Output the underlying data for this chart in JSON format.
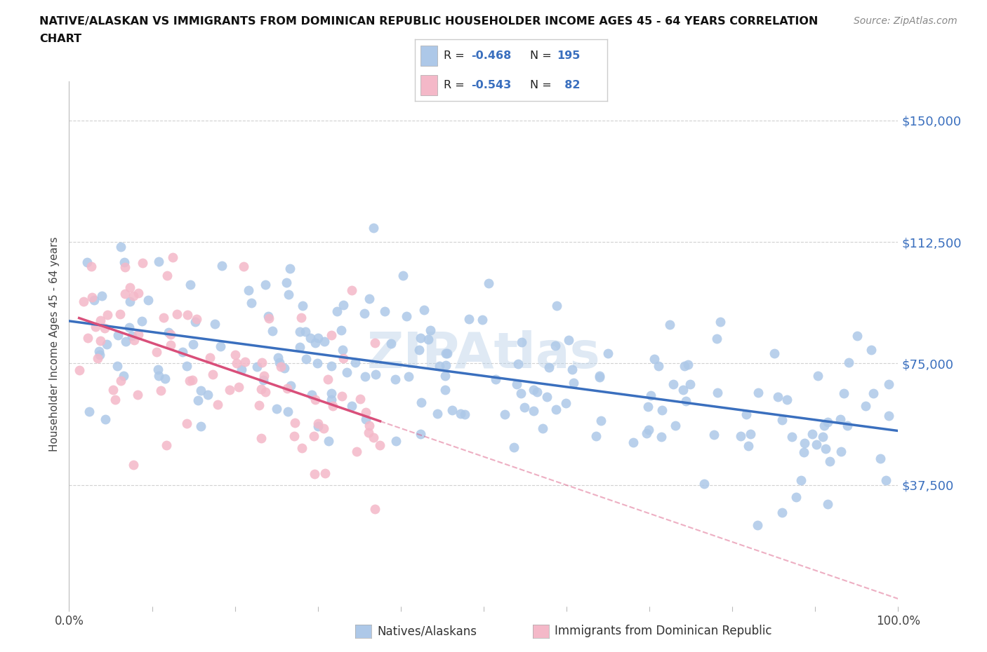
{
  "title_line1": "NATIVE/ALASKAN VS IMMIGRANTS FROM DOMINICAN REPUBLIC HOUSEHOLDER INCOME AGES 45 - 64 YEARS CORRELATION",
  "title_line2": "CHART",
  "source_text": "Source: ZipAtlas.com",
  "ylabel": "Householder Income Ages 45 - 64 years",
  "xlim": [
    0.0,
    1.0
  ],
  "ylim": [
    0,
    162000
  ],
  "yticks": [
    37500,
    75000,
    112500,
    150000
  ],
  "ytick_labels": [
    "$37,500",
    "$75,000",
    "$112,500",
    "$150,000"
  ],
  "native_color": "#adc8e8",
  "native_line_color": "#3a6fbe",
  "immigrant_color": "#f4b8c8",
  "immigrant_line_color": "#d94f7a",
  "native_R": -0.468,
  "native_N": 195,
  "immigrant_R": -0.543,
  "immigrant_N": 82,
  "watermark": "ZIPAtlas",
  "grid_color": "#cccccc",
  "background_color": "#ffffff",
  "native_seed": 77,
  "immigrant_seed": 42,
  "legend_native_text_color": "#3a6fbe",
  "bottom_legend_native_label": "Natives/Alaskans",
  "bottom_legend_immigrant_label": "Immigrants from Dominican Republic"
}
